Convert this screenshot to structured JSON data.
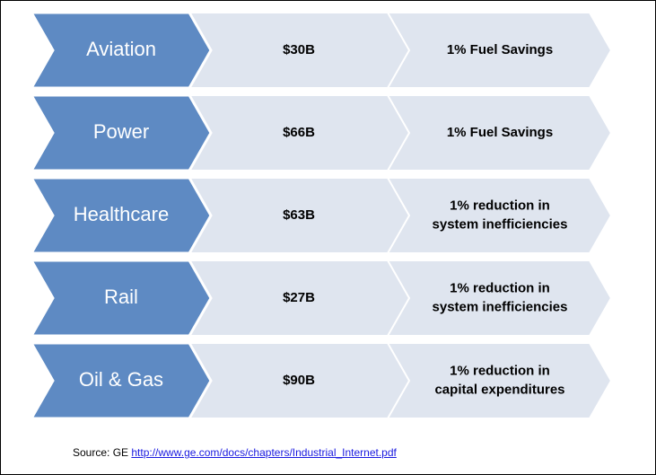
{
  "rows": [
    {
      "sector": "Aviation",
      "value": "$30B",
      "effect": [
        "1% Fuel Savings"
      ]
    },
    {
      "sector": "Power",
      "value": "$66B",
      "effect": [
        "1% Fuel Savings"
      ]
    },
    {
      "sector": "Healthcare",
      "value": "$63B",
      "effect": [
        "1% reduction in",
        "system inefficiencies"
      ]
    },
    {
      "sector": "Rail",
      "value": "$27B",
      "effect": [
        "1% reduction in",
        "system inefficiencies"
      ]
    },
    {
      "sector": "Oil & Gas",
      "value": "$90B",
      "effect": [
        "1% reduction in",
        "capital expenditures"
      ]
    }
  ],
  "source": {
    "label": "Source: GE",
    "link": "http://www.ge.com/docs/chapters/Industrial_Internet.pdf"
  }
}
